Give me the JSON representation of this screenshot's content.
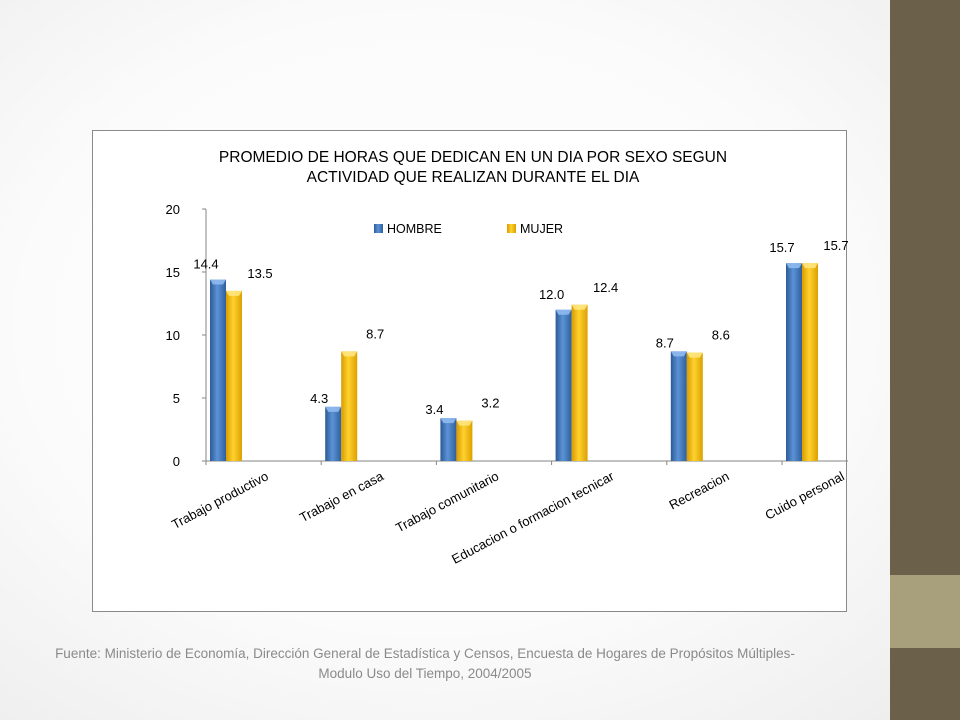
{
  "slide": {
    "source_note": "Fuente: Ministerio de Economía, Dirección General de Estadística y Censos, Encuesta de Hogares de Propósitos Múltiples- Modulo Uso del Tiempo, 2004/2005",
    "accent_colors": {
      "dark": "#6b614a",
      "light": "#a8a07c"
    }
  },
  "chart_data": {
    "type": "bar",
    "title_lines": [
      "PROMEDIO DE HORAS QUE DEDICAN EN UN DIA POR SEXO SEGUN",
      "ACTIVIDAD QUE REALIZAN DURANTE  EL DIA"
    ],
    "categories": [
      "Trabajo productivo",
      "Trabajo en casa",
      "Trabajo comunitario",
      "Educacion o formacion tecnicar",
      "Recreacion",
      "Cuido personal"
    ],
    "series": [
      {
        "name": "HOMBRE",
        "color": "#4f81bd",
        "values": [
          14.4,
          4.3,
          3.4,
          12.0,
          8.7,
          15.7
        ],
        "labels": [
          "14.4",
          "4.3",
          "3.4",
          "12.0",
          "8.7",
          "15.7"
        ]
      },
      {
        "name": "MUJER",
        "color": "#ffc000",
        "values": [
          13.5,
          8.7,
          3.2,
          12.4,
          8.6,
          15.7
        ],
        "labels": [
          "13.5",
          "8.7",
          "3.2",
          "12.4",
          "8.6",
          "15.7"
        ]
      }
    ],
    "ylim": [
      0,
      20
    ],
    "yticks": [
      0,
      5,
      10,
      15,
      20
    ],
    "legend_position": "top",
    "grid": false
  }
}
